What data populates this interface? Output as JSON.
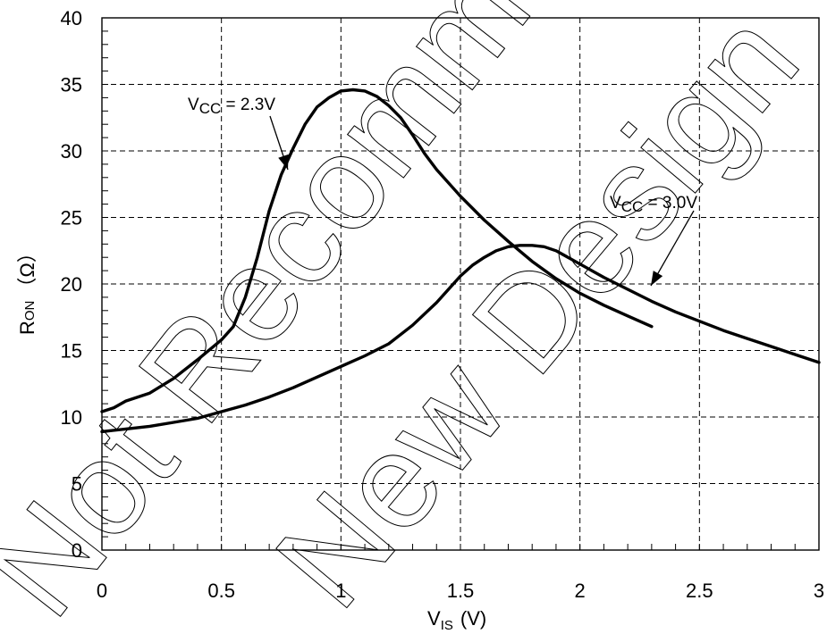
{
  "chart_data": {
    "type": "line",
    "xlabel": {
      "main": "V",
      "sub": "IS",
      "unit": "(V)"
    },
    "ylabel": {
      "main": "R",
      "sub": "ON",
      "unit": "（Ω）"
    },
    "xlim": [
      0,
      3
    ],
    "ylim": [
      0,
      40
    ],
    "x_ticks": [
      "0",
      "0.5",
      "1",
      "1.5",
      "2",
      "2.5",
      "3"
    ],
    "y_ticks": [
      "0",
      "5",
      "10",
      "15",
      "20",
      "25",
      "30",
      "35",
      "40"
    ],
    "grid": true,
    "series": [
      {
        "name": "VCC = 2.3V",
        "x": [
          0,
          0.05,
          0.1,
          0.2,
          0.3,
          0.4,
          0.5,
          0.55,
          0.6,
          0.65,
          0.7,
          0.75,
          0.8,
          0.85,
          0.9,
          0.95,
          1.0,
          1.05,
          1.1,
          1.15,
          1.2,
          1.25,
          1.3,
          1.35,
          1.4,
          1.5,
          1.6,
          1.7,
          1.8,
          1.9,
          2.0,
          2.1,
          2.2,
          2.3
        ],
        "y": [
          10.4,
          10.7,
          11.2,
          11.8,
          12.9,
          14.3,
          15.8,
          16.8,
          19.0,
          22.0,
          25.5,
          28.2,
          30.2,
          32.0,
          33.3,
          34.0,
          34.5,
          34.6,
          34.5,
          34.1,
          33.4,
          32.5,
          31.2,
          29.8,
          28.6,
          26.6,
          24.8,
          23.2,
          21.7,
          20.4,
          19.3,
          18.4,
          17.6,
          16.8
        ]
      },
      {
        "name": "VCC = 3.0V",
        "x": [
          0,
          0.1,
          0.2,
          0.3,
          0.4,
          0.5,
          0.6,
          0.7,
          0.8,
          0.9,
          1.0,
          1.1,
          1.2,
          1.3,
          1.4,
          1.5,
          1.55,
          1.6,
          1.65,
          1.7,
          1.75,
          1.8,
          1.85,
          1.9,
          1.95,
          2.0,
          2.1,
          2.2,
          2.3,
          2.4,
          2.5,
          2.6,
          2.7,
          2.8,
          2.9,
          3.0
        ],
        "y": [
          8.9,
          9.1,
          9.3,
          9.6,
          9.9,
          10.4,
          10.9,
          11.5,
          12.2,
          13.0,
          13.8,
          14.6,
          15.5,
          16.9,
          18.6,
          20.6,
          21.4,
          22.0,
          22.5,
          22.8,
          22.9,
          22.9,
          22.8,
          22.5,
          22.0,
          21.5,
          20.5,
          19.6,
          18.7,
          17.9,
          17.2,
          16.5,
          15.9,
          15.3,
          14.7,
          14.1
        ]
      }
    ],
    "annotations": [
      {
        "main": "V",
        "sub": "CC",
        "rest": " = 2.3V"
      },
      {
        "main": "V",
        "sub": "CC",
        "rest": " = 3.0V"
      }
    ]
  }
}
